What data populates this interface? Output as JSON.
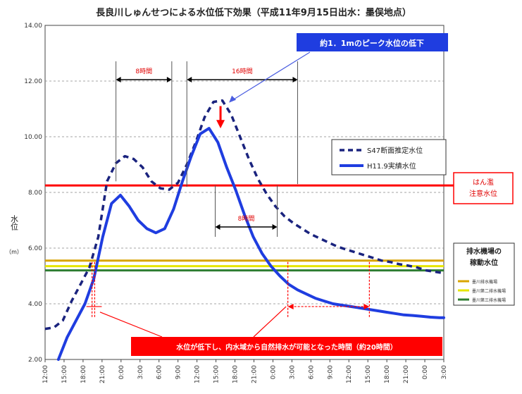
{
  "chart_data": {
    "type": "line",
    "title": "長良川しゅんせつによる水位低下効果（平成11年9月15日出水：墨俣地点）",
    "ylabel": "水位",
    "yunit": "（m）",
    "ylim": [
      2.0,
      14.0
    ],
    "yticks": [
      "2.00",
      "4.00",
      "6.00",
      "8.00",
      "10.00",
      "12.00",
      "14.00"
    ],
    "xlim": [
      0,
      45
    ],
    "xticks": [
      "12:00",
      "15:00",
      "18:00",
      "21:00",
      "0:00",
      "3:00",
      "6:00",
      "9:00",
      "12:00",
      "15:00",
      "18:00",
      "21:00",
      "0:00",
      "3:00",
      "6:00",
      "9:00",
      "12:00",
      "15:00",
      "18:00",
      "21:00",
      "0:00",
      "3:00"
    ],
    "grid": true,
    "legend_position": "right",
    "series": [
      {
        "name": "S47断面推定水位",
        "style": "dashed",
        "color": "#1a237e",
        "x": [
          0,
          1,
          2,
          3,
          4,
          5,
          6,
          7,
          8,
          9,
          10,
          11,
          12,
          13,
          14,
          15,
          16,
          17,
          18,
          19,
          20,
          21,
          22,
          23,
          24,
          25,
          26,
          27,
          28,
          29,
          30,
          31,
          32,
          33,
          34,
          35,
          36,
          37,
          38,
          39,
          40,
          41,
          42,
          43,
          44,
          45
        ],
        "values": [
          3.1,
          3.15,
          3.4,
          4.1,
          4.7,
          5.3,
          6.4,
          8.4,
          9.05,
          9.3,
          9.2,
          8.9,
          8.4,
          8.15,
          8.1,
          8.35,
          9.0,
          9.8,
          10.7,
          11.25,
          11.3,
          10.8,
          10.0,
          9.2,
          8.5,
          7.95,
          7.5,
          7.15,
          6.9,
          6.7,
          6.5,
          6.35,
          6.2,
          6.05,
          5.95,
          5.85,
          5.75,
          5.65,
          5.55,
          5.5,
          5.42,
          5.37,
          5.3,
          5.2,
          5.15,
          5.1
        ]
      },
      {
        "name": "H11.9実績水位",
        "style": "solid",
        "color": "#1f3de0",
        "x": [
          1.5,
          2.5,
          3.5,
          4.5,
          5.5,
          6.5,
          7.5,
          8.5,
          9.5,
          10.5,
          11.5,
          12.5,
          13.5,
          14.5,
          15.5,
          16.5,
          17.5,
          18.5,
          19.5,
          20.5,
          21.5,
          22.5,
          23.5,
          24.5,
          25.5,
          26.5,
          27.5,
          28.5,
          29.5,
          30.5,
          31.5,
          32.5,
          33.5,
          34.5,
          35.5,
          36.5,
          37.5,
          38.5,
          39.5,
          40.5,
          41.5,
          42.5,
          43.5,
          44.5,
          45.0
        ],
        "values": [
          2.0,
          2.8,
          3.4,
          4.0,
          4.9,
          6.4,
          7.6,
          7.9,
          7.5,
          7.0,
          6.7,
          6.55,
          6.7,
          7.4,
          8.4,
          9.3,
          10.1,
          10.3,
          9.8,
          8.9,
          8.1,
          7.2,
          6.4,
          5.8,
          5.35,
          5.0,
          4.7,
          4.5,
          4.35,
          4.2,
          4.1,
          4.0,
          3.95,
          3.9,
          3.85,
          3.8,
          3.75,
          3.7,
          3.65,
          3.6,
          3.58,
          3.55,
          3.52,
          3.5,
          3.5
        ]
      }
    ],
    "reference_lines": [
      {
        "value": 8.25,
        "color": "#ff0000",
        "label": "はん濫\n注意水位"
      },
      {
        "value": 5.55,
        "color": "#d9a400",
        "label": "墨川排水機場"
      },
      {
        "value": 5.35,
        "color": "#e6e600",
        "label": "墨川第二排水機場"
      },
      {
        "value": 5.2,
        "color": "#2e7d32",
        "label": "墨川第三排水機場"
      }
    ],
    "pump_legend_title": "排水機場の\n稼動水位",
    "annotations": {
      "peak_drop": "約1．1mのピーク水位の低下",
      "interval_a": "8時間",
      "interval_b": "16時間",
      "interval_c": "8時間",
      "drainage_note": "水位が低下し、内水域から自然排水が可能となった時間（約20時間）"
    }
  }
}
